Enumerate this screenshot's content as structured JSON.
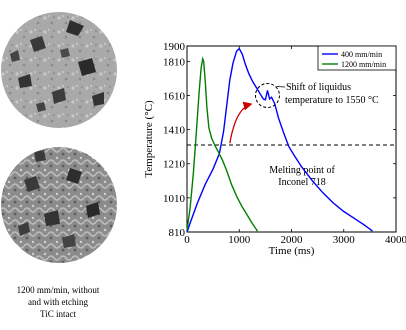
{
  "images": {
    "top": {
      "label": ""
    },
    "bottom": {
      "label": ""
    }
  },
  "caption": {
    "line1": "1200 mm/min, without",
    "line2": "and with etching",
    "line3": "TiC intact"
  },
  "chart_data": {
    "type": "line",
    "xlabel": "Time (ms)",
    "ylabel": "Temperature (°C)",
    "xlim": [
      0,
      4000
    ],
    "ylim": [
      810,
      1900
    ],
    "xticks": [
      0,
      1000,
      2000,
      3000,
      4000
    ],
    "yticks": [
      810,
      1010,
      1210,
      1410,
      1610,
      1810,
      1900
    ],
    "grid": false,
    "legend_position": "top-right",
    "series": [
      {
        "name": "400 mm/min",
        "color": "#0000ff",
        "x": [
          0,
          80,
          200,
          350,
          500,
          620,
          700,
          760,
          820,
          880,
          950,
          1000,
          1060,
          1120,
          1180,
          1260,
          1320,
          1400,
          1460,
          1500,
          1540,
          1580,
          1620,
          1680,
          1750,
          1850,
          1950,
          2050,
          2200,
          2400,
          2600,
          2800,
          3000,
          3200,
          3400,
          3550
        ],
        "y": [
          810,
          880,
          980,
          1090,
          1180,
          1270,
          1400,
          1550,
          1700,
          1800,
          1870,
          1885,
          1850,
          1790,
          1740,
          1690,
          1660,
          1620,
          1590,
          1585,
          1640,
          1590,
          1600,
          1560,
          1480,
          1390,
          1310,
          1260,
          1190,
          1110,
          1040,
          980,
          930,
          890,
          850,
          815
        ]
      },
      {
        "name": "1200 mm/min",
        "color": "#008000",
        "x": [
          0,
          60,
          120,
          180,
          230,
          270,
          300,
          320,
          350,
          380,
          420,
          470,
          530,
          600,
          680,
          760,
          850,
          950,
          1050,
          1150,
          1250,
          1350
        ],
        "y": [
          820,
          950,
          1150,
          1400,
          1620,
          1770,
          1825,
          1810,
          1690,
          1540,
          1420,
          1360,
          1320,
          1280,
          1230,
          1170,
          1090,
          1020,
          960,
          910,
          860,
          815
        ]
      }
    ],
    "melting_line": {
      "y": 1320,
      "label_line1": "Melting point of",
      "label_line2": "Inconel 718"
    },
    "annotation": {
      "line1": "Shift of  liquidus",
      "line2": "temperature to 1550 °C",
      "circle_center": [
        1540,
        1610
      ],
      "arrow_from": [
        820,
        1330
      ],
      "arrow_to": [
        1230,
        1560
      ],
      "arrow_color": "#cc0000"
    }
  }
}
